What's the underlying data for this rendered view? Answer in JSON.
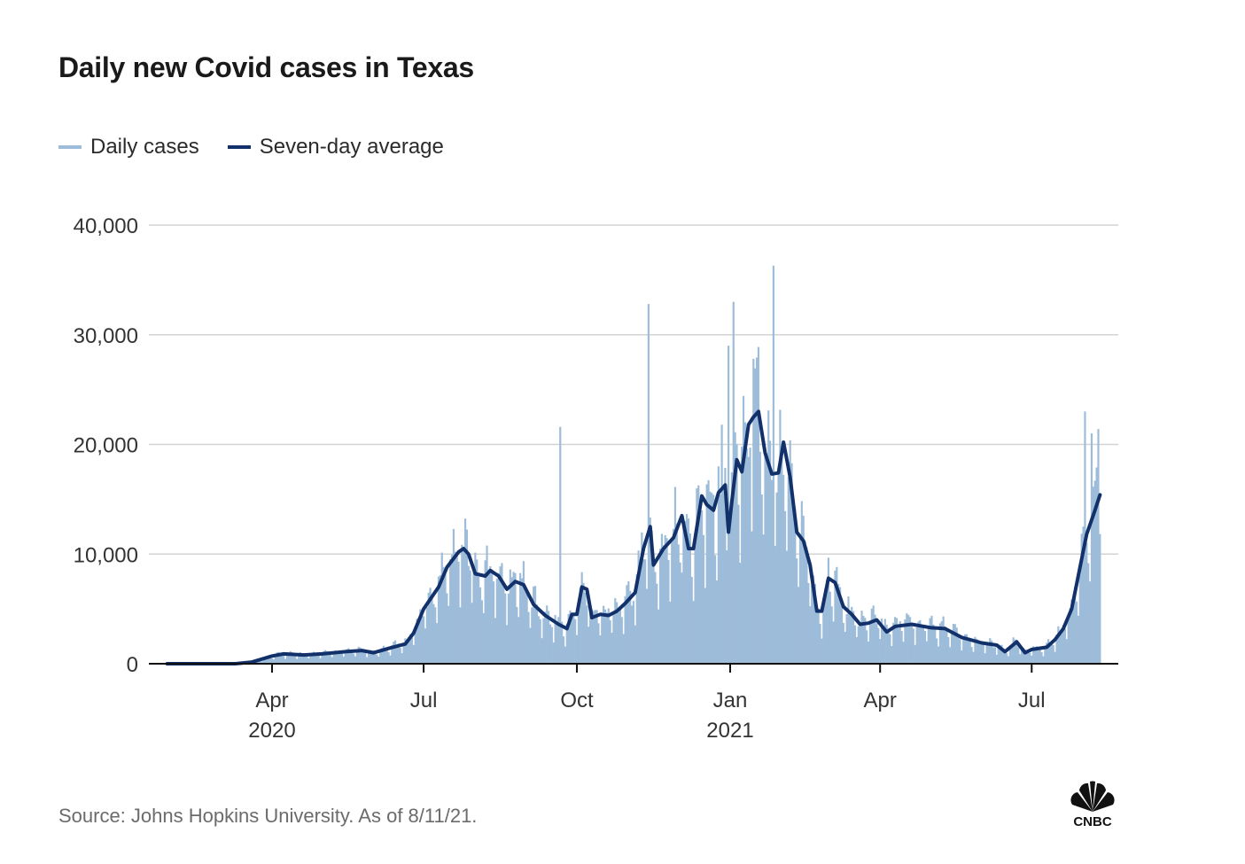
{
  "title": "Daily new Covid cases in Texas",
  "legend": [
    {
      "label": "Daily cases",
      "color": "#9dbcd9"
    },
    {
      "label": "Seven-day average",
      "color": "#12306a"
    }
  ],
  "source": "Source: Johns Hopkins University. As of 8/11/21.",
  "logo": {
    "text": "CNBC",
    "icon": "nbc-peacock-icon"
  },
  "chart_data": {
    "type": "bar+line",
    "title": "Daily new Covid cases in Texas",
    "xlabel": "",
    "ylabel": "",
    "ylim": [
      0,
      40000
    ],
    "yticks": [
      0,
      10000,
      20000,
      30000,
      40000
    ],
    "ytick_labels": [
      "0",
      "10,000",
      "20,000",
      "30,000",
      "40,000"
    ],
    "grid": true,
    "legend_position": "top-left",
    "x_range": [
      "2020-01-29",
      "2021-08-11"
    ],
    "xticks": [
      {
        "date": "2020-04-01",
        "label": "Apr",
        "sublabel": "2020"
      },
      {
        "date": "2020-07-01",
        "label": "Jul",
        "sublabel": ""
      },
      {
        "date": "2020-10-01",
        "label": "Oct",
        "sublabel": ""
      },
      {
        "date": "2021-01-01",
        "label": "Jan",
        "sublabel": "2021"
      },
      {
        "date": "2021-04-01",
        "label": "Apr",
        "sublabel": ""
      },
      {
        "date": "2021-07-01",
        "label": "Jul",
        "sublabel": ""
      }
    ],
    "series": [
      {
        "name": "Seven-day average",
        "kind": "line",
        "color": "#12306a",
        "points": [
          [
            "2020-01-29",
            0
          ],
          [
            "2020-03-10",
            0
          ],
          [
            "2020-03-20",
            150
          ],
          [
            "2020-04-01",
            700
          ],
          [
            "2020-04-08",
            900
          ],
          [
            "2020-04-20",
            800
          ],
          [
            "2020-05-01",
            900
          ],
          [
            "2020-05-15",
            1100
          ],
          [
            "2020-05-25",
            1200
          ],
          [
            "2020-06-01",
            1000
          ],
          [
            "2020-06-10",
            1400
          ],
          [
            "2020-06-20",
            1800
          ],
          [
            "2020-06-25",
            2800
          ],
          [
            "2020-07-01",
            5000
          ],
          [
            "2020-07-10",
            7000
          ],
          [
            "2020-07-15",
            8800
          ],
          [
            "2020-07-22",
            10200
          ],
          [
            "2020-07-25",
            10500
          ],
          [
            "2020-07-28",
            10000
          ],
          [
            "2020-08-01",
            8200
          ],
          [
            "2020-08-07",
            8000
          ],
          [
            "2020-08-10",
            8500
          ],
          [
            "2020-08-15",
            8000
          ],
          [
            "2020-08-20",
            6800
          ],
          [
            "2020-08-25",
            7500
          ],
          [
            "2020-08-30",
            7200
          ],
          [
            "2020-09-05",
            5400
          ],
          [
            "2020-09-12",
            4400
          ],
          [
            "2020-09-20",
            3600
          ],
          [
            "2020-09-25",
            3200
          ],
          [
            "2020-09-28",
            4500
          ],
          [
            "2020-10-01",
            4500
          ],
          [
            "2020-10-04",
            7000
          ],
          [
            "2020-10-07",
            6800
          ],
          [
            "2020-10-10",
            4200
          ],
          [
            "2020-10-15",
            4500
          ],
          [
            "2020-10-20",
            4400
          ],
          [
            "2020-10-25",
            4800
          ],
          [
            "2020-10-30",
            5500
          ],
          [
            "2020-11-05",
            6500
          ],
          [
            "2020-11-10",
            10500
          ],
          [
            "2020-11-14",
            12500
          ],
          [
            "2020-11-16",
            9000
          ],
          [
            "2020-11-22",
            10500
          ],
          [
            "2020-11-28",
            11500
          ],
          [
            "2020-12-03",
            13500
          ],
          [
            "2020-12-07",
            10500
          ],
          [
            "2020-12-10",
            10500
          ],
          [
            "2020-12-15",
            15300
          ],
          [
            "2020-12-18",
            14500
          ],
          [
            "2020-12-22",
            14000
          ],
          [
            "2020-12-25",
            15600
          ],
          [
            "2020-12-29",
            16300
          ],
          [
            "2020-12-31",
            12000
          ],
          [
            "2021-01-02",
            14800
          ],
          [
            "2021-01-05",
            18600
          ],
          [
            "2021-01-08",
            17500
          ],
          [
            "2021-01-12",
            21800
          ],
          [
            "2021-01-15",
            22500
          ],
          [
            "2021-01-18",
            23000
          ],
          [
            "2021-01-22",
            19200
          ],
          [
            "2021-01-26",
            17300
          ],
          [
            "2021-01-30",
            17400
          ],
          [
            "2021-02-02",
            20200
          ],
          [
            "2021-02-06",
            17000
          ],
          [
            "2021-02-10",
            12000
          ],
          [
            "2021-02-14",
            11200
          ],
          [
            "2021-02-18",
            9000
          ],
          [
            "2021-02-22",
            4800
          ],
          [
            "2021-02-25",
            4800
          ],
          [
            "2021-03-01",
            7800
          ],
          [
            "2021-03-05",
            7400
          ],
          [
            "2021-03-10",
            5200
          ],
          [
            "2021-03-15",
            4500
          ],
          [
            "2021-03-20",
            3600
          ],
          [
            "2021-03-25",
            3700
          ],
          [
            "2021-03-30",
            4000
          ],
          [
            "2021-04-05",
            2900
          ],
          [
            "2021-04-10",
            3400
          ],
          [
            "2021-04-20",
            3600
          ],
          [
            "2021-05-01",
            3300
          ],
          [
            "2021-05-10",
            3200
          ],
          [
            "2021-05-20",
            2400
          ],
          [
            "2021-06-01",
            1900
          ],
          [
            "2021-06-10",
            1700
          ],
          [
            "2021-06-15",
            1100
          ],
          [
            "2021-06-22",
            2000
          ],
          [
            "2021-06-27",
            1000
          ],
          [
            "2021-07-01",
            1300
          ],
          [
            "2021-07-10",
            1500
          ],
          [
            "2021-07-15",
            2200
          ],
          [
            "2021-07-20",
            3200
          ],
          [
            "2021-07-25",
            5000
          ],
          [
            "2021-07-30",
            8800
          ],
          [
            "2021-08-03",
            11800
          ],
          [
            "2021-08-08",
            14000
          ],
          [
            "2021-08-11",
            15400
          ]
        ]
      },
      {
        "name": "Daily cases",
        "kind": "bar",
        "color": "#9dbcd9",
        "note": "daily bars follow the seven-day average with day-to-day variation; notable spikes listed",
        "spikes": [
          [
            "2020-09-21",
            21600
          ],
          [
            "2020-11-13",
            32800
          ],
          [
            "2020-12-31",
            29000
          ],
          [
            "2021-01-03",
            33000
          ],
          [
            "2021-01-15",
            27800
          ],
          [
            "2021-01-27",
            36300
          ],
          [
            "2021-08-02",
            23000
          ],
          [
            "2021-08-06",
            21000
          ],
          [
            "2021-08-10",
            21400
          ]
        ]
      }
    ]
  }
}
